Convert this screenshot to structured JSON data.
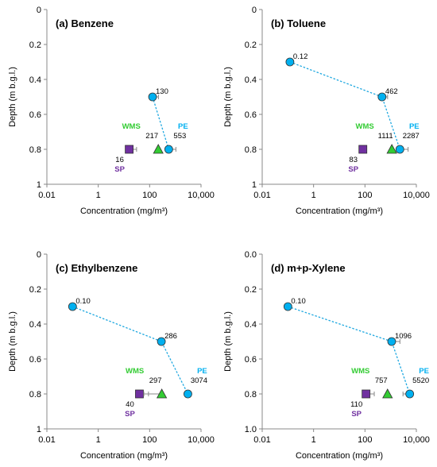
{
  "chart_data": [
    {
      "type": "scatter",
      "title": "(a) Benzene",
      "xlabel": "Concentration (mg/m³)",
      "ylabel": "Depth (m b.g.l.)",
      "xscale": "log",
      "xlim": [
        0.01,
        10000
      ],
      "xticks": [
        "0.01",
        "1",
        "100",
        "10,000"
      ],
      "ylim": [
        1,
        0
      ],
      "yticks": [
        "0",
        "0.2",
        "0.4",
        "0.6",
        "0.8",
        "1"
      ],
      "colors": {
        "profile": "#00B0F0",
        "WMS": "#33CC33",
        "SP": "#7030A0",
        "PE": "#00B0F0",
        "line": "#1FA8E0"
      },
      "profile": [
        {
          "depth": 0.5,
          "conc": 130,
          "label": "130",
          "err": 90
        }
      ],
      "samplers": [
        {
          "name": "SP",
          "marker": "square",
          "depth": 0.8,
          "conc": 16,
          "label": "16",
          "err": 15
        },
        {
          "name": "WMS",
          "marker": "triangle",
          "depth": 0.8,
          "conc": 217,
          "label": "217"
        },
        {
          "name": "PE",
          "marker": "circle",
          "depth": 0.8,
          "conc": 553,
          "label": "553",
          "err": 500
        }
      ]
    },
    {
      "type": "scatter",
      "title": "(b) Toluene",
      "xlabel": "Concentration (mg/m³)",
      "ylabel": "Depth (m b.g.l.)",
      "xscale": "log",
      "xlim": [
        0.01,
        10000
      ],
      "xticks": [
        "0.01",
        "1",
        "100",
        "10,000"
      ],
      "ylim": [
        1,
        0
      ],
      "yticks": [
        "0",
        "0.2",
        "0.4",
        "0.6",
        "0.8",
        "1"
      ],
      "colors": {
        "profile": "#00B0F0",
        "WMS": "#33CC33",
        "SP": "#7030A0",
        "PE": "#00B0F0",
        "line": "#1FA8E0"
      },
      "profile": [
        {
          "depth": 0.3,
          "conc": 0.12,
          "label": "0.12"
        },
        {
          "depth": 0.5,
          "conc": 462,
          "label": "462",
          "err": 300
        }
      ],
      "samplers": [
        {
          "name": "SP",
          "marker": "square",
          "depth": 0.8,
          "conc": 83,
          "label": "83"
        },
        {
          "name": "WMS",
          "marker": "triangle",
          "depth": 0.8,
          "conc": 1111,
          "label": "1111"
        },
        {
          "name": "PE",
          "marker": "circle",
          "depth": 0.8,
          "conc": 2287,
          "label": "2287",
          "err": 2500
        }
      ]
    },
    {
      "type": "scatter",
      "title": "(c) Ethylbenzene",
      "xlabel": "Concentration (mg/m³)",
      "ylabel": "Depth (m b.g.l.)",
      "xscale": "log",
      "xlim": [
        0.01,
        10000
      ],
      "xticks": [
        "0.01",
        "1",
        "100",
        "10,000"
      ],
      "ylim": [
        1,
        0
      ],
      "yticks": [
        "0",
        "0.2",
        "0.4",
        "0.6",
        "0.8",
        "1"
      ],
      "colors": {
        "profile": "#00B0F0",
        "WMS": "#33CC33",
        "SP": "#7030A0",
        "PE": "#00B0F0",
        "line": "#1FA8E0"
      },
      "profile": [
        {
          "depth": 0.3,
          "conc": 0.1,
          "label": "0.10"
        },
        {
          "depth": 0.5,
          "conc": 286,
          "label": "286"
        }
      ],
      "samplers": [
        {
          "name": "SP",
          "marker": "square",
          "depth": 0.8,
          "conc": 40,
          "label": "40",
          "err": 50
        },
        {
          "name": "WMS",
          "marker": "triangle",
          "depth": 0.8,
          "conc": 297,
          "label": "297",
          "errleft": 250
        },
        {
          "name": "PE",
          "marker": "circle",
          "depth": 0.8,
          "conc": 3074,
          "label": "3074"
        }
      ]
    },
    {
      "type": "scatter",
      "title": "(d) m+p-Xylene",
      "xlabel": "Concentration (mg/m³)",
      "ylabel": "Depth (m b.g.l.)",
      "xscale": "log",
      "xlim": [
        0.01,
        10000
      ],
      "xticks": [
        "0.01",
        "1",
        "100",
        "10,000"
      ],
      "ylim": [
        1,
        0
      ],
      "yticks": [
        "0.0",
        "0.2",
        "0.4",
        "0.6",
        "0.8",
        "1.0"
      ],
      "colors": {
        "profile": "#00B0F0",
        "WMS": "#33CC33",
        "SP": "#7030A0",
        "PE": "#00B0F0",
        "line": "#1FA8E0"
      },
      "profile": [
        {
          "depth": 0.3,
          "conc": 0.1,
          "label": "0.10"
        },
        {
          "depth": 0.5,
          "conc": 1096,
          "label": "1096",
          "err": 1200
        }
      ],
      "samplers": [
        {
          "name": "SP",
          "marker": "square",
          "depth": 0.8,
          "conc": 110,
          "label": "110",
          "err": 120
        },
        {
          "name": "WMS",
          "marker": "triangle",
          "depth": 0.8,
          "conc": 757,
          "label": "757"
        },
        {
          "name": "PE",
          "marker": "circle",
          "depth": 0.8,
          "conc": 5520,
          "label": "5520",
          "errleft": 2500
        }
      ]
    }
  ]
}
